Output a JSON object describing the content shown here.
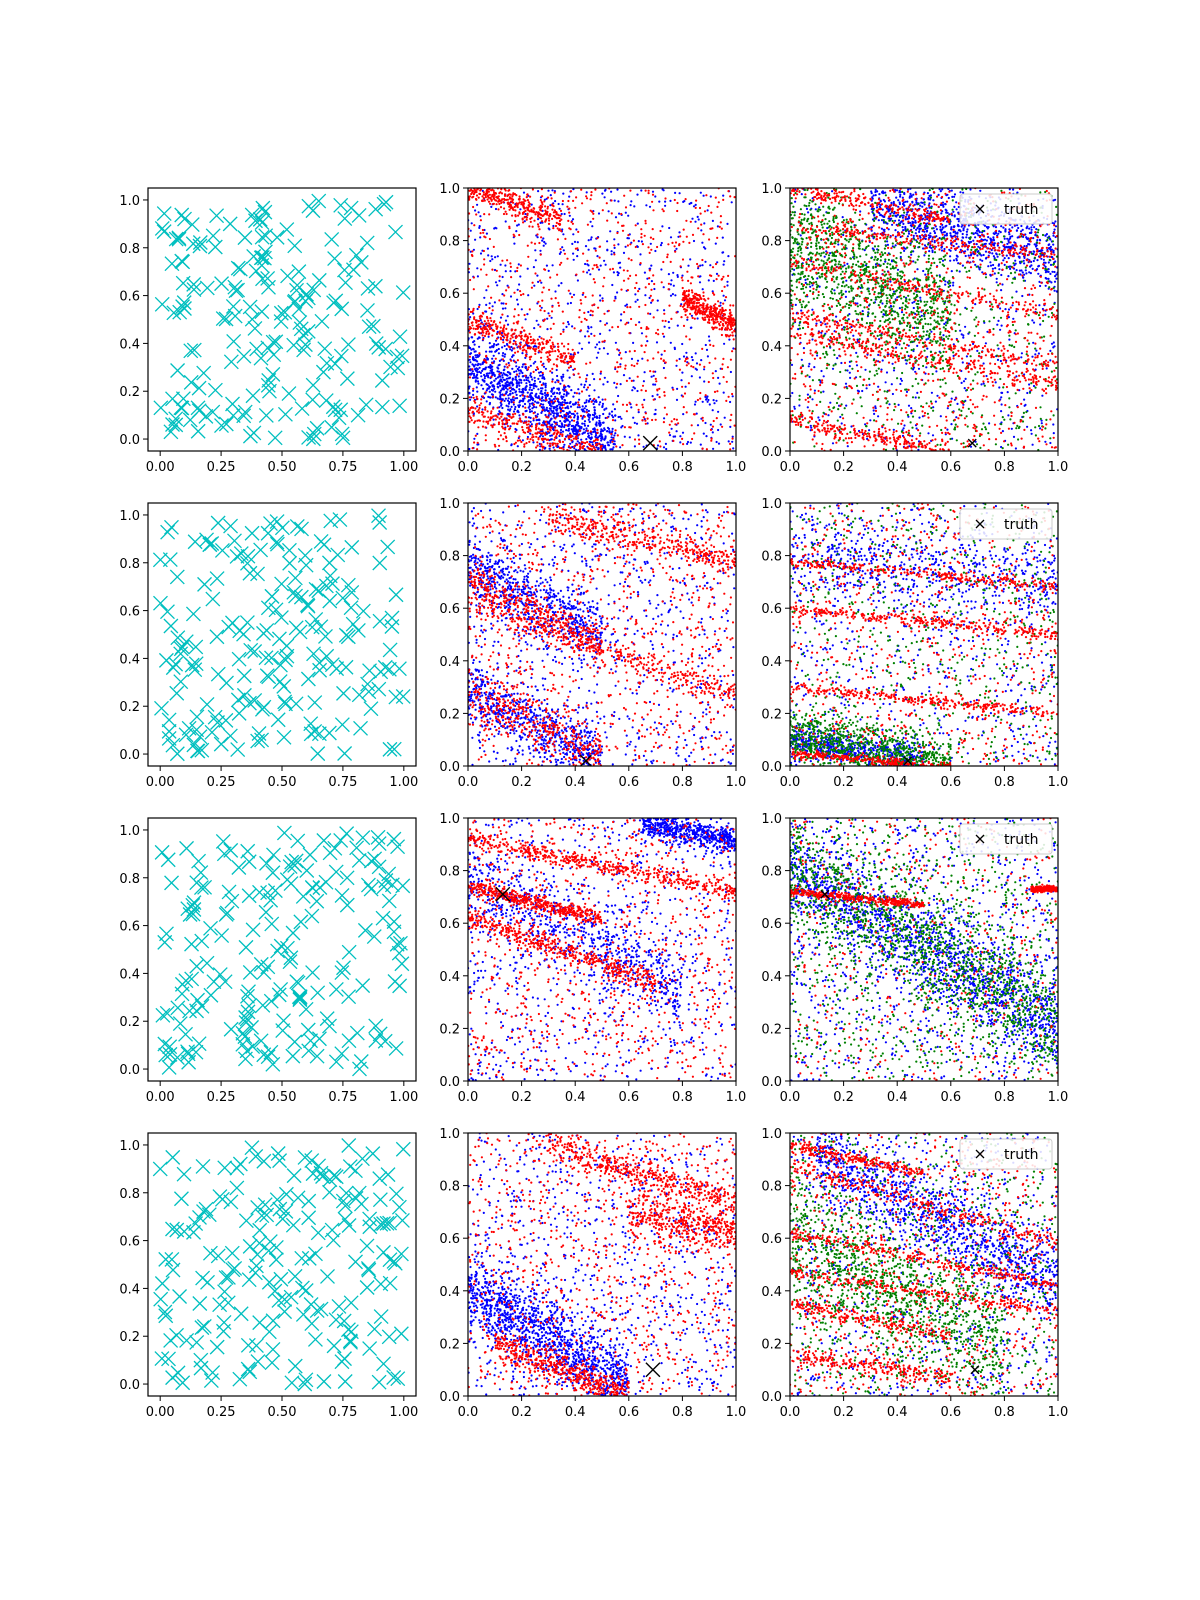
{
  "figure": {
    "background": "#ffffff",
    "colors": {
      "candidates": "#00bfbf",
      "blue": "#0000ff",
      "red": "#ff0000",
      "green": "#008000",
      "truth": "#000000"
    }
  },
  "chart_data": [
    {
      "panel": "r1c1",
      "type": "scatter",
      "marker": "x",
      "color": "#00bfbf",
      "xlim": [
        -0.05,
        1.05
      ],
      "ylim": [
        -0.05,
        1.05
      ],
      "xticks": [
        "0.00",
        "0.25",
        "0.50",
        "0.75",
        "1.00"
      ],
      "yticks": [
        "0.0",
        "0.2",
        "0.4",
        "0.6",
        "0.8",
        "1.0"
      ],
      "points_note": "~200 uniformly scattered candidate points",
      "n_points": 200,
      "seed": 11
    },
    {
      "panel": "r1c2",
      "type": "scatter",
      "xlim": [
        0,
        1
      ],
      "ylim": [
        0,
        1
      ],
      "xticks": [
        "0.0",
        "0.2",
        "0.4",
        "0.6",
        "0.8",
        "1.0"
      ],
      "yticks": [
        "0.0",
        "0.2",
        "0.4",
        "0.6",
        "0.8",
        "1.0"
      ],
      "series": [
        {
          "name": "blue",
          "color": "#0000ff",
          "n": 2000,
          "bands": [
            {
              "x0": 0.0,
              "y0": 0.35,
              "slope": -0.6,
              "w": 0.15,
              "xmax": 0.55
            }
          ]
        },
        {
          "name": "red",
          "color": "#ff0000",
          "n": 2000,
          "bands": [
            {
              "x0": 0.0,
              "y0": 1.0,
              "slope": -0.35,
              "w": 0.05,
              "xmax": 0.35
            },
            {
              "x0": 0.0,
              "y0": 0.5,
              "slope": -0.4,
              "w": 0.05,
              "xmax": 0.4
            },
            {
              "x0": 0.0,
              "y0": 0.15,
              "slope": -0.3,
              "w": 0.06,
              "xmax": 0.5
            },
            {
              "x0": 0.8,
              "y0": 0.58,
              "slope": -0.5,
              "w": 0.05,
              "xmax": 1.0
            }
          ]
        }
      ],
      "truth": {
        "x": 0.68,
        "y": 0.03,
        "size": "large"
      },
      "seed": 21
    },
    {
      "panel": "r1c3",
      "type": "scatter",
      "xlim": [
        0,
        1
      ],
      "ylim": [
        0,
        1
      ],
      "xticks": [
        "0.0",
        "0.2",
        "0.4",
        "0.6",
        "0.8",
        "1.0"
      ],
      "yticks": [
        "0.0",
        "0.2",
        "0.4",
        "0.6",
        "0.8",
        "1.0"
      ],
      "legend": {
        "label": "truth",
        "loc": "upper right"
      },
      "series": [
        {
          "name": "blue",
          "color": "#0000ff",
          "n": 1600,
          "bands": [
            {
              "x0": 0.3,
              "y0": 0.95,
              "slope": -0.3,
              "w": 0.15,
              "xmax": 1.0
            }
          ]
        },
        {
          "name": "green",
          "color": "#008000",
          "n": 1600,
          "bands": [
            {
              "x0": 0.0,
              "y0": 0.8,
              "slope": -0.5,
              "w": 0.25,
              "xmax": 0.6
            }
          ]
        },
        {
          "name": "red",
          "color": "#ff0000",
          "n": 2200,
          "bands": [
            {
              "x0": 0.0,
              "y0": 1.0,
              "slope": -0.2,
              "w": 0.03,
              "xmax": 0.6
            },
            {
              "x0": 0.0,
              "y0": 0.85,
              "slope": -0.1,
              "w": 0.03,
              "xmax": 1.0
            },
            {
              "x0": 0.0,
              "y0": 0.72,
              "slope": -0.2,
              "w": 0.03,
              "xmax": 1.0
            },
            {
              "x0": 0.0,
              "y0": 0.52,
              "slope": -0.2,
              "w": 0.03,
              "xmax": 1.0
            },
            {
              "x0": 0.0,
              "y0": 0.45,
              "slope": -0.2,
              "w": 0.04,
              "xmax": 1.0
            },
            {
              "x0": 0.0,
              "y0": 0.12,
              "slope": -0.2,
              "w": 0.03,
              "xmax": 0.6
            }
          ]
        }
      ],
      "truth": {
        "x": 0.68,
        "y": 0.03,
        "size": "small"
      },
      "seed": 31
    },
    {
      "panel": "r2c1",
      "type": "scatter",
      "marker": "x",
      "color": "#00bfbf",
      "xlim": [
        -0.05,
        1.05
      ],
      "ylim": [
        -0.05,
        1.05
      ],
      "xticks": [
        "0.00",
        "0.25",
        "0.50",
        "0.75",
        "1.00"
      ],
      "yticks": [
        "0.0",
        "0.2",
        "0.4",
        "0.6",
        "0.8",
        "1.0"
      ],
      "n_points": 200,
      "seed": 12
    },
    {
      "panel": "r2c2",
      "type": "scatter",
      "xlim": [
        0,
        1
      ],
      "ylim": [
        0,
        1
      ],
      "xticks": [
        "0.0",
        "0.2",
        "0.4",
        "0.6",
        "0.8",
        "1.0"
      ],
      "yticks": [
        "0.0",
        "0.2",
        "0.4",
        "0.6",
        "0.8",
        "1.0"
      ],
      "series": [
        {
          "name": "blue",
          "color": "#0000ff",
          "n": 2000,
          "bands": [
            {
              "x0": 0.0,
              "y0": 0.75,
              "slope": -0.5,
              "w": 0.12,
              "xmax": 0.5
            },
            {
              "x0": 0.0,
              "y0": 0.28,
              "slope": -0.5,
              "w": 0.12,
              "xmax": 0.5
            }
          ]
        },
        {
          "name": "red",
          "color": "#ff0000",
          "n": 2200,
          "bands": [
            {
              "x0": 0.0,
              "y0": 0.72,
              "slope": -0.5,
              "w": 0.06,
              "xmax": 0.5
            },
            {
              "x0": 0.0,
              "y0": 0.28,
              "slope": -0.5,
              "w": 0.1,
              "xmax": 0.5
            },
            {
              "x0": 0.0,
              "y0": 0.62,
              "slope": -0.35,
              "w": 0.05,
              "xmax": 1.0
            },
            {
              "x0": 0.3,
              "y0": 0.95,
              "slope": -0.25,
              "w": 0.05,
              "xmax": 1.0
            }
          ]
        }
      ],
      "truth": {
        "x": 0.44,
        "y": 0.02,
        "size": "medium"
      },
      "seed": 22
    },
    {
      "panel": "r2c3",
      "type": "scatter",
      "xlim": [
        0,
        1
      ],
      "ylim": [
        0,
        1
      ],
      "xticks": [
        "0.0",
        "0.2",
        "0.4",
        "0.6",
        "0.8",
        "1.0"
      ],
      "yticks": [
        "0.0",
        "0.2",
        "0.4",
        "0.6",
        "0.8",
        "1.0"
      ],
      "legend": {
        "label": "truth",
        "loc": "upper right"
      },
      "series": [
        {
          "name": "blue",
          "color": "#0000ff",
          "n": 1700,
          "bands": [
            {
              "x0": 0.0,
              "y0": 0.1,
              "slope": -0.15,
              "w": 0.06,
              "xmax": 0.5
            },
            {
              "x0": 0.0,
              "y0": 0.8,
              "slope": -0.1,
              "w": 0.15,
              "xmax": 1.0
            }
          ]
        },
        {
          "name": "green",
          "color": "#008000",
          "n": 1500,
          "bands": [
            {
              "x0": 0.0,
              "y0": 0.12,
              "slope": -0.2,
              "w": 0.1,
              "xmax": 0.6
            }
          ]
        },
        {
          "name": "red",
          "color": "#ff0000",
          "n": 1800,
          "bands": [
            {
              "x0": 0.0,
              "y0": 0.05,
              "slope": -0.09,
              "w": 0.015,
              "xmax": 0.6
            },
            {
              "x0": 0.0,
              "y0": 0.78,
              "slope": -0.1,
              "w": 0.02,
              "xmax": 1.0
            },
            {
              "x0": 0.0,
              "y0": 0.6,
              "slope": -0.1,
              "w": 0.02,
              "xmax": 1.0
            },
            {
              "x0": 0.0,
              "y0": 0.3,
              "slope": -0.1,
              "w": 0.02,
              "xmax": 1.0
            }
          ]
        }
      ],
      "truth": {
        "x": 0.44,
        "y": 0.02,
        "size": "small"
      },
      "seed": 32
    },
    {
      "panel": "r3c1",
      "type": "scatter",
      "marker": "x",
      "color": "#00bfbf",
      "xlim": [
        -0.05,
        1.05
      ],
      "ylim": [
        -0.05,
        1.05
      ],
      "xticks": [
        "0.00",
        "0.25",
        "0.50",
        "0.75",
        "1.00"
      ],
      "yticks": [
        "0.0",
        "0.2",
        "0.4",
        "0.6",
        "0.8",
        "1.0"
      ],
      "n_points": 200,
      "seed": 13
    },
    {
      "panel": "r3c2",
      "type": "scatter",
      "xlim": [
        0,
        1
      ],
      "ylim": [
        0,
        1
      ],
      "xticks": [
        "0.0",
        "0.2",
        "0.4",
        "0.6",
        "0.8",
        "1.0"
      ],
      "yticks": [
        "0.0",
        "0.2",
        "0.4",
        "0.6",
        "0.8",
        "1.0"
      ],
      "series": [
        {
          "name": "blue",
          "color": "#0000ff",
          "n": 2000,
          "bands": [
            {
              "x0": 0.0,
              "y0": 0.78,
              "slope": -0.55,
              "w": 0.15,
              "xmax": 0.8
            },
            {
              "x0": 0.65,
              "y0": 0.98,
              "slope": -0.2,
              "w": 0.05,
              "xmax": 1.0
            }
          ]
        },
        {
          "name": "red",
          "color": "#ff0000",
          "n": 2200,
          "bands": [
            {
              "x0": 0.0,
              "y0": 0.74,
              "slope": -0.25,
              "w": 0.03,
              "xmax": 0.5
            },
            {
              "x0": 0.0,
              "y0": 0.62,
              "slope": -0.35,
              "w": 0.04,
              "xmax": 0.7
            },
            {
              "x0": 0.0,
              "y0": 0.92,
              "slope": -0.2,
              "w": 0.03,
              "xmax": 1.0
            }
          ]
        }
      ],
      "truth": {
        "x": 0.13,
        "y": 0.71,
        "size": "large"
      },
      "seed": 23
    },
    {
      "panel": "r3c3",
      "type": "scatter",
      "xlim": [
        0,
        1
      ],
      "ylim": [
        0,
        1
      ],
      "xticks": [
        "0.0",
        "0.2",
        "0.4",
        "0.6",
        "0.8",
        "1.0"
      ],
      "yticks": [
        "0.0",
        "0.2",
        "0.4",
        "0.6",
        "0.8",
        "1.0"
      ],
      "legend": {
        "label": "truth",
        "loc": "upper right"
      },
      "series": [
        {
          "name": "blue",
          "color": "#0000ff",
          "n": 2200,
          "bands": [
            {
              "x0": 0.0,
              "y0": 0.8,
              "slope": -0.6,
              "w": 0.18,
              "xmax": 1.0
            }
          ]
        },
        {
          "name": "green",
          "color": "#008000",
          "n": 2000,
          "bands": [
            {
              "x0": 0.0,
              "y0": 0.82,
              "slope": -0.6,
              "w": 0.2,
              "xmax": 1.0
            }
          ]
        },
        {
          "name": "red",
          "color": "#ff0000",
          "n": 1200,
          "bands": [
            {
              "x0": 0.0,
              "y0": 0.72,
              "slope": -0.1,
              "w": 0.015,
              "xmax": 0.5
            },
            {
              "x0": 0.9,
              "y0": 0.73,
              "slope": 0.0,
              "w": 0.01,
              "xmax": 1.0
            }
          ]
        }
      ],
      "truth": {
        "x": 0.13,
        "y": 0.71,
        "size": "small"
      },
      "seed": 33
    },
    {
      "panel": "r4c1",
      "type": "scatter",
      "marker": "x",
      "color": "#00bfbf",
      "xlim": [
        -0.05,
        1.05
      ],
      "ylim": [
        -0.05,
        1.05
      ],
      "xticks": [
        "0.00",
        "0.25",
        "0.50",
        "0.75",
        "1.00"
      ],
      "yticks": [
        "0.0",
        "0.2",
        "0.4",
        "0.6",
        "0.8",
        "1.0"
      ],
      "n_points": 200,
      "seed": 14
    },
    {
      "panel": "r4c2",
      "type": "scatter",
      "xlim": [
        0,
        1
      ],
      "ylim": [
        0,
        1
      ],
      "xticks": [
        "0.0",
        "0.2",
        "0.4",
        "0.6",
        "0.8",
        "1.0"
      ],
      "yticks": [
        "0.0",
        "0.2",
        "0.4",
        "0.6",
        "0.8",
        "1.0"
      ],
      "series": [
        {
          "name": "blue",
          "color": "#0000ff",
          "n": 2000,
          "bands": [
            {
              "x0": 0.0,
              "y0": 0.4,
              "slope": -0.6,
              "w": 0.15,
              "xmax": 0.6
            }
          ]
        },
        {
          "name": "red",
          "color": "#ff0000",
          "n": 2200,
          "bands": [
            {
              "x0": 0.1,
              "y0": 0.2,
              "slope": -0.4,
              "w": 0.06,
              "xmax": 0.6
            },
            {
              "x0": 0.3,
              "y0": 0.95,
              "slope": -0.3,
              "w": 0.05,
              "xmax": 1.0
            },
            {
              "x0": 0.6,
              "y0": 0.7,
              "slope": -0.2,
              "w": 0.08,
              "xmax": 1.0
            }
          ]
        }
      ],
      "truth": {
        "x": 0.69,
        "y": 0.1,
        "size": "large"
      },
      "seed": 24
    },
    {
      "panel": "r4c3",
      "type": "scatter",
      "xlim": [
        0,
        1
      ],
      "ylim": [
        0,
        1
      ],
      "xticks": [
        "0.0",
        "0.2",
        "0.4",
        "0.6",
        "0.8",
        "1.0"
      ],
      "yticks": [
        "0.0",
        "0.2",
        "0.4",
        "0.6",
        "0.8",
        "1.0"
      ],
      "legend": {
        "label": "truth",
        "loc": "upper right"
      },
      "series": [
        {
          "name": "blue",
          "color": "#0000ff",
          "n": 1800,
          "bands": [
            {
              "x0": 0.1,
              "y0": 0.92,
              "slope": -0.55,
              "w": 0.15,
              "xmax": 1.0
            }
          ]
        },
        {
          "name": "green",
          "color": "#008000",
          "n": 1800,
          "bands": [
            {
              "x0": 0.0,
              "y0": 0.6,
              "slope": -0.5,
              "w": 0.25,
              "xmax": 0.8
            }
          ]
        },
        {
          "name": "red",
          "color": "#ff0000",
          "n": 2200,
          "bands": [
            {
              "x0": 0.0,
              "y0": 0.95,
              "slope": -0.2,
              "w": 0.02,
              "xmax": 0.5
            },
            {
              "x0": 0.0,
              "y0": 0.88,
              "slope": -0.3,
              "w": 0.03,
              "xmax": 1.0
            },
            {
              "x0": 0.0,
              "y0": 0.47,
              "slope": -0.15,
              "w": 0.02,
              "xmax": 1.0
            },
            {
              "x0": 0.0,
              "y0": 0.35,
              "slope": -0.2,
              "w": 0.03,
              "xmax": 0.6
            },
            {
              "x0": 0.0,
              "y0": 0.16,
              "slope": -0.15,
              "w": 0.03,
              "xmax": 0.6
            },
            {
              "x0": 0.0,
              "y0": 0.62,
              "slope": -0.2,
              "w": 0.02,
              "xmax": 1.0
            }
          ]
        }
      ],
      "truth": {
        "x": 0.69,
        "y": 0.1,
        "size": "small"
      },
      "seed": 34
    }
  ]
}
